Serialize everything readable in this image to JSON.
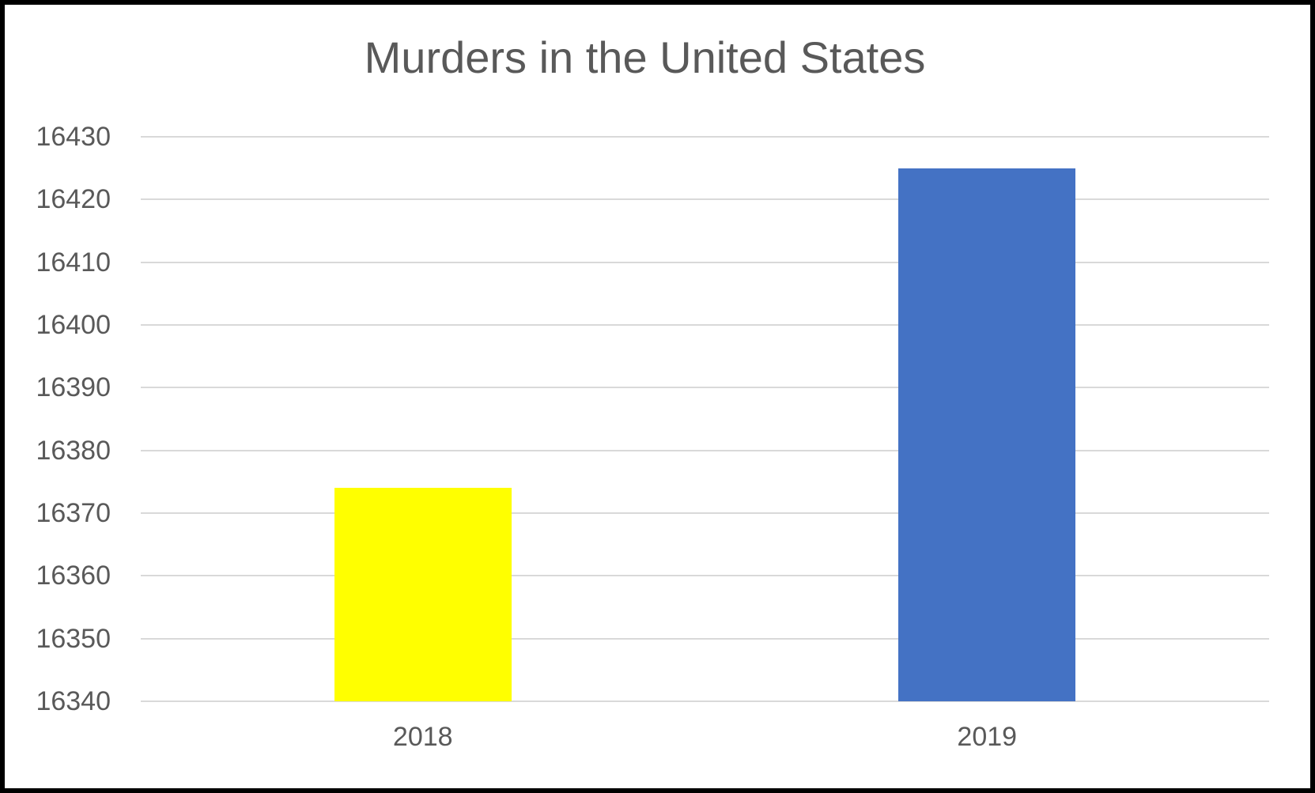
{
  "chart_data": {
    "type": "bar",
    "title": "Murders in the United States",
    "categories": [
      "2018",
      "2019"
    ],
    "values": [
      16374,
      16425
    ],
    "bar_colors": [
      "#FFFF00",
      "#4472C4"
    ],
    "ylim": [
      16340,
      16430
    ],
    "yticks": [
      16340,
      16350,
      16360,
      16370,
      16380,
      16390,
      16400,
      16410,
      16420,
      16430
    ],
    "xlabel": "",
    "ylabel": "",
    "grid": true,
    "legend_position": "none",
    "gridline_color": "#D9D9D9",
    "text_color": "#595959",
    "background_color": "#FFFFFF",
    "border_color": "#000000"
  }
}
